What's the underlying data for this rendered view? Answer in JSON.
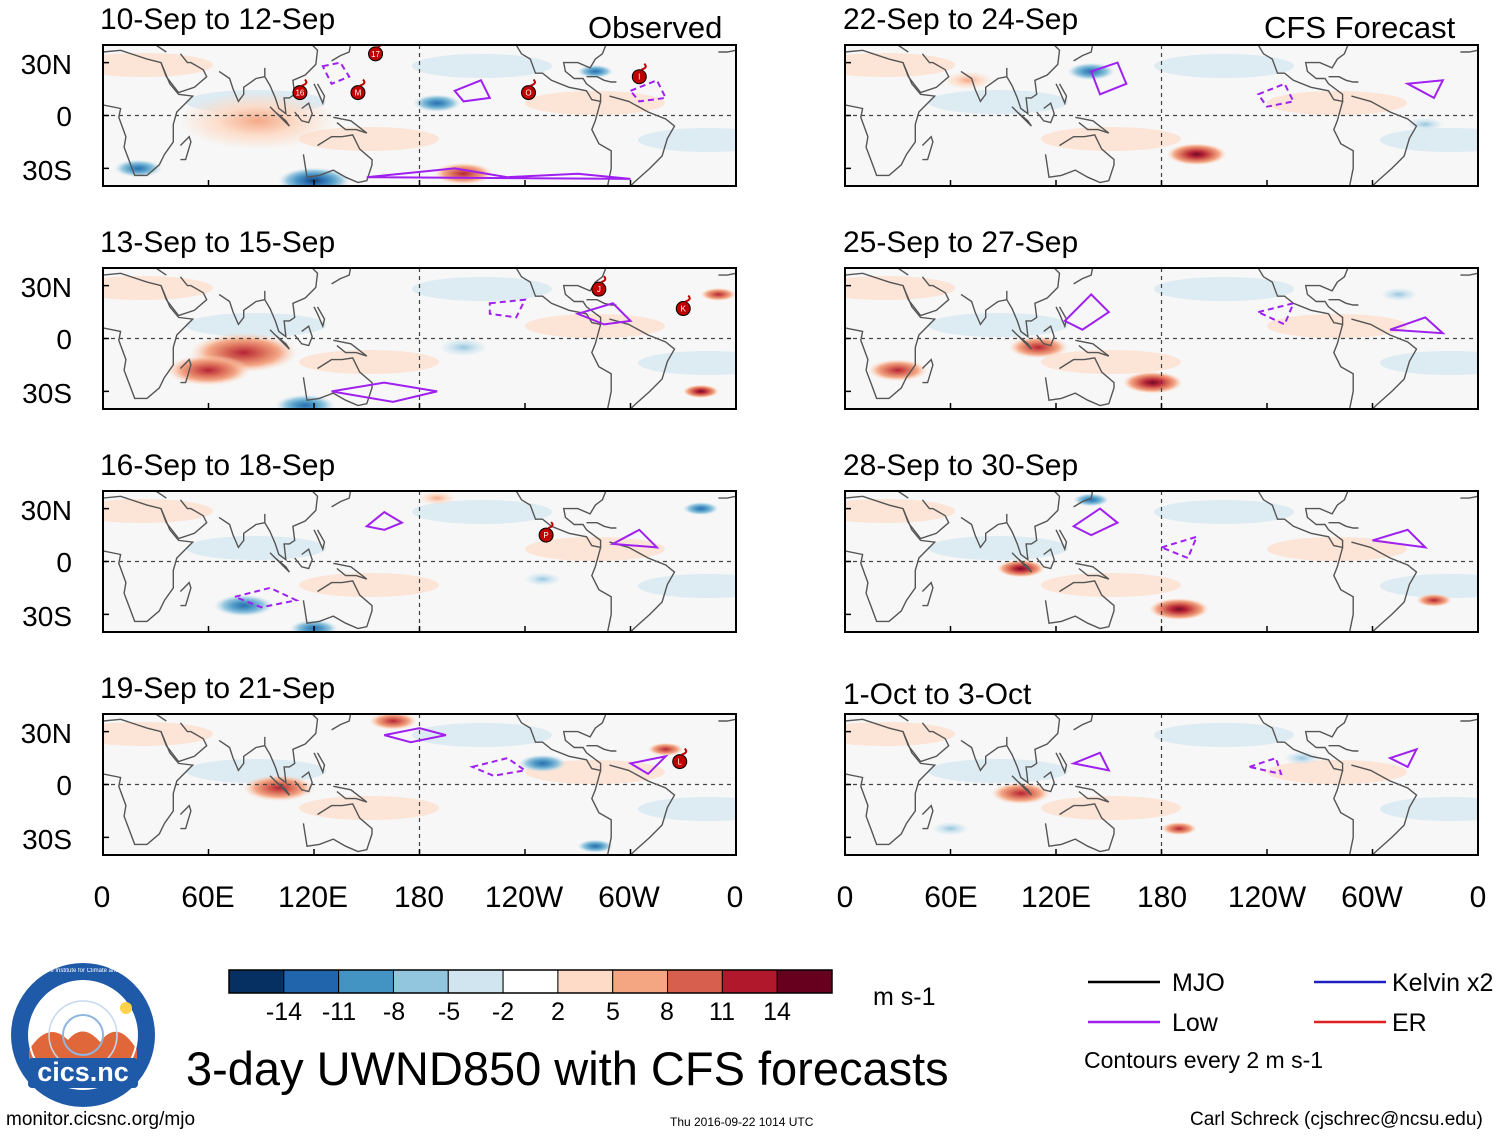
{
  "chart_data": {
    "type": "heatmap",
    "title": "3-day UWND850 with CFS forecasts",
    "variable": "850-hPa zonal wind anomaly",
    "units": "m s-1",
    "x_ticks": [
      "0",
      "60E",
      "120E",
      "180",
      "120W",
      "60W",
      "0"
    ],
    "y_ticks": [
      "30N",
      "0",
      "30S"
    ],
    "xlim_deg_east": [
      0,
      360
    ],
    "ylim_deg_north": [
      -40,
      40
    ],
    "colorbar": {
      "ticks": [
        "-14",
        "-11",
        "-8",
        "-5",
        "-2",
        "2",
        "5",
        "8",
        "11",
        "14"
      ],
      "colors": [
        "#053061",
        "#2166ac",
        "#4393c3",
        "#92c5de",
        "#d1e5f0",
        "#ffffff",
        "#fddbc7",
        "#f4a582",
        "#d6604d",
        "#b2182b",
        "#67001f"
      ],
      "units": "m s-1"
    },
    "columns": [
      {
        "header": "Observed",
        "panels": [
          {
            "title": "10-Sep to 12-Sep",
            "anomalies": [
              [
                88,
                -3,
                5,
                13
              ],
              [
                120,
                -37,
                -12,
                6
              ],
              [
                205,
                -33,
                6,
                5
              ],
              [
                190,
                7,
                -7,
                4
              ],
              [
                20,
                -30,
                -6,
                4
              ],
              [
                280,
                25,
                -8,
                3
              ]
            ],
            "storms": [
              {
                "label": "17",
                "lon": 155,
                "lat": 35
              },
              {
                "label": "16",
                "lon": 112,
                "lat": 13
              },
              {
                "label": "M",
                "lon": 145,
                "lat": 13
              },
              {
                "label": "O",
                "lon": 242,
                "lat": 13
              },
              {
                "label": "I",
                "lon": 305,
                "lat": 22
              }
            ]
          },
          {
            "title": "13-Sep to 15-Sep",
            "anomalies": [
              [
                80,
                -8,
                8,
                9
              ],
              [
                60,
                -18,
                6,
                7
              ],
              [
                115,
                -38,
                -10,
                5
              ],
              [
                340,
                -30,
                12,
                3
              ],
              [
                205,
                -5,
                -5,
                4
              ],
              [
                350,
                25,
                6,
                3
              ]
            ],
            "storms": [
              {
                "label": "J",
                "lon": 282,
                "lat": 28
              },
              {
                "label": "K",
                "lon": 330,
                "lat": 17
              }
            ]
          },
          {
            "title": "16-Sep to 18-Sep",
            "anomalies": [
              [
                80,
                -25,
                -8,
                5
              ],
              [
                120,
                -38,
                -9,
                4
              ],
              [
                250,
                -10,
                -5,
                3
              ],
              [
                190,
                36,
                5,
                3
              ],
              [
                340,
                30,
                -6,
                3
              ]
            ],
            "storms": [
              {
                "label": "P",
                "lon": 252,
                "lat": 15
              }
            ]
          },
          {
            "title": "19-Sep to 21-Sep",
            "anomalies": [
              [
                100,
                -2,
                6,
                6
              ],
              [
                165,
                36,
                10,
                4
              ],
              [
                250,
                12,
                -7,
                4
              ],
              [
                280,
                -35,
                -8,
                3
              ],
              [
                320,
                20,
                6,
                3
              ]
            ],
            "storms": [
              {
                "label": "L",
                "lon": 328,
                "lat": 13
              }
            ]
          }
        ]
      },
      {
        "header": "CFS Forecast",
        "panels": [
          {
            "title": "22-Sep to 24-Sep",
            "anomalies": [
              [
                200,
                -22,
                11,
                5
              ],
              [
                140,
                25,
                -9,
                4
              ],
              [
                70,
                20,
                5,
                4
              ],
              [
                330,
                -5,
                -4,
                3
              ]
            ],
            "storms": []
          },
          {
            "title": "25-Sep to 27-Sep",
            "anomalies": [
              [
                175,
                -25,
                13,
                5
              ],
              [
                110,
                -5,
                10,
                5
              ],
              [
                30,
                -18,
                6,
                5
              ],
              [
                315,
                25,
                -5,
                3
              ]
            ],
            "storms": []
          },
          {
            "title": "28-Sep to 30-Sep",
            "anomalies": [
              [
                190,
                -27,
                14,
                5
              ],
              [
                100,
                -4,
                13,
                4
              ],
              [
                335,
                -22,
                6,
                3
              ],
              [
                140,
                35,
                -6,
                3
              ]
            ],
            "storms": []
          },
          {
            "title": "1-Oct to 3-Oct",
            "anomalies": [
              [
                100,
                -5,
                10,
                5
              ],
              [
                190,
                -25,
                6,
                3
              ],
              [
                60,
                -25,
                -4,
                3
              ],
              [
                260,
                15,
                -4,
                3
              ]
            ],
            "storms": []
          }
        ]
      }
    ],
    "legend": [
      {
        "label": "MJO",
        "color": "#000000"
      },
      {
        "label": "Kelvin x2",
        "color": "#2020c0"
      },
      {
        "label": "Low",
        "color": "#a020f0"
      },
      {
        "label": "ER",
        "color": "#e02020"
      }
    ],
    "contour_note": "Contours every 2 m s-1"
  },
  "footer": {
    "website": "monitor.cicsnc.org/mjo",
    "timestamp": "Thu 2016-09-22 1014 UTC",
    "credit": "Carl Schreck (cjschrec@ncsu.edu)",
    "logo_text": "cics.nc",
    "logo_ring_text": "Cooperative Institute for Climate and Satellites"
  }
}
